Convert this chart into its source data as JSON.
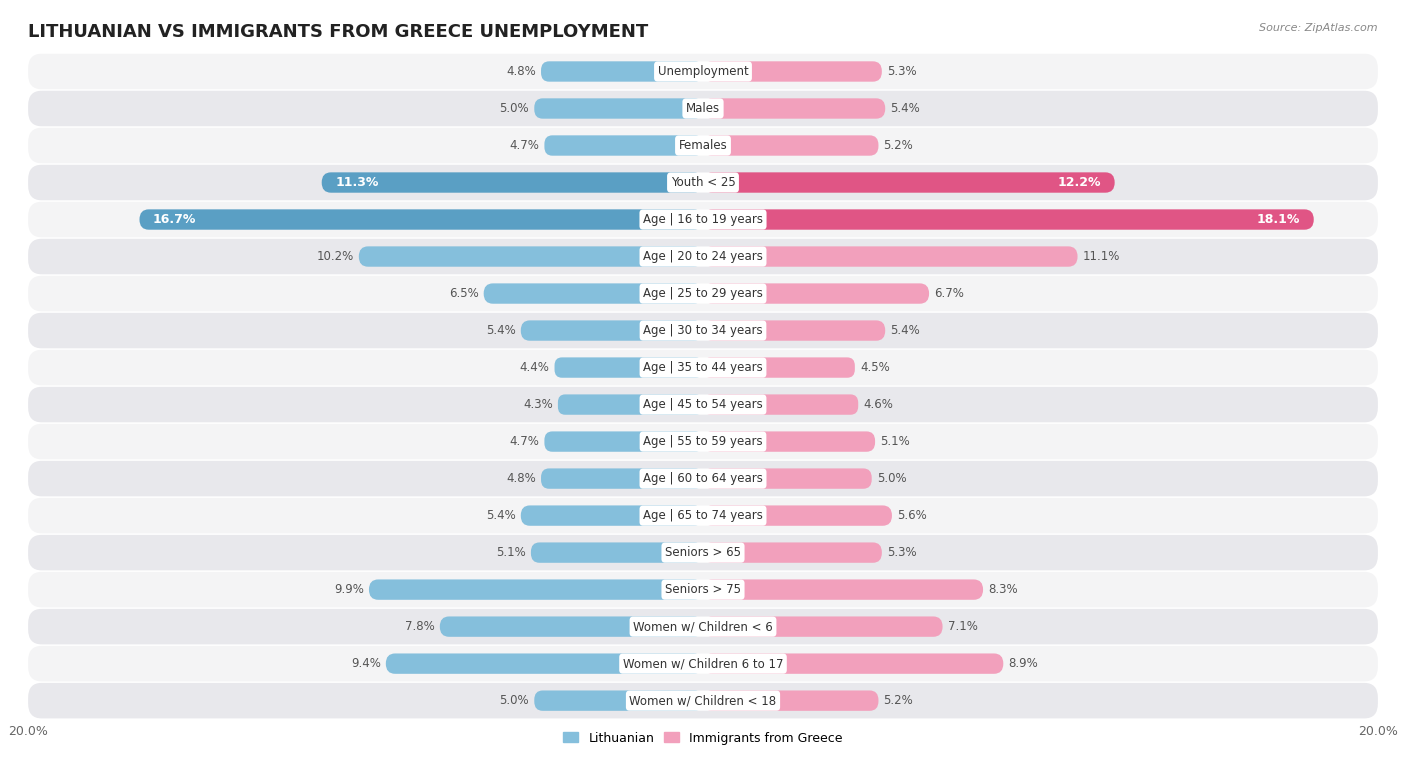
{
  "title": "LITHUANIAN VS IMMIGRANTS FROM GREECE UNEMPLOYMENT",
  "source": "Source: ZipAtlas.com",
  "categories": [
    "Unemployment",
    "Males",
    "Females",
    "Youth < 25",
    "Age | 16 to 19 years",
    "Age | 20 to 24 years",
    "Age | 25 to 29 years",
    "Age | 30 to 34 years",
    "Age | 35 to 44 years",
    "Age | 45 to 54 years",
    "Age | 55 to 59 years",
    "Age | 60 to 64 years",
    "Age | 65 to 74 years",
    "Seniors > 65",
    "Seniors > 75",
    "Women w/ Children < 6",
    "Women w/ Children 6 to 17",
    "Women w/ Children < 18"
  ],
  "lithuanian": [
    4.8,
    5.0,
    4.7,
    11.3,
    16.7,
    10.2,
    6.5,
    5.4,
    4.4,
    4.3,
    4.7,
    4.8,
    5.4,
    5.1,
    9.9,
    7.8,
    9.4,
    5.0
  ],
  "immigrants": [
    5.3,
    5.4,
    5.2,
    12.2,
    18.1,
    11.1,
    6.7,
    5.4,
    4.5,
    4.6,
    5.1,
    5.0,
    5.6,
    5.3,
    8.3,
    7.1,
    8.9,
    5.2
  ],
  "lithuanian_color": "#85bfdc",
  "immigrants_color": "#f2a0bc",
  "highlight_lithuanian_color": "#5a9fc4",
  "highlight_immigrants_color": "#e05585",
  "highlight_rows": [
    3,
    4
  ],
  "row_bg_even": "#f4f4f5",
  "row_bg_odd": "#e8e8ec",
  "xlim": 20.0,
  "bar_height": 0.55,
  "legend_lithuanian": "Lithuanian",
  "legend_immigrants": "Immigrants from Greece"
}
